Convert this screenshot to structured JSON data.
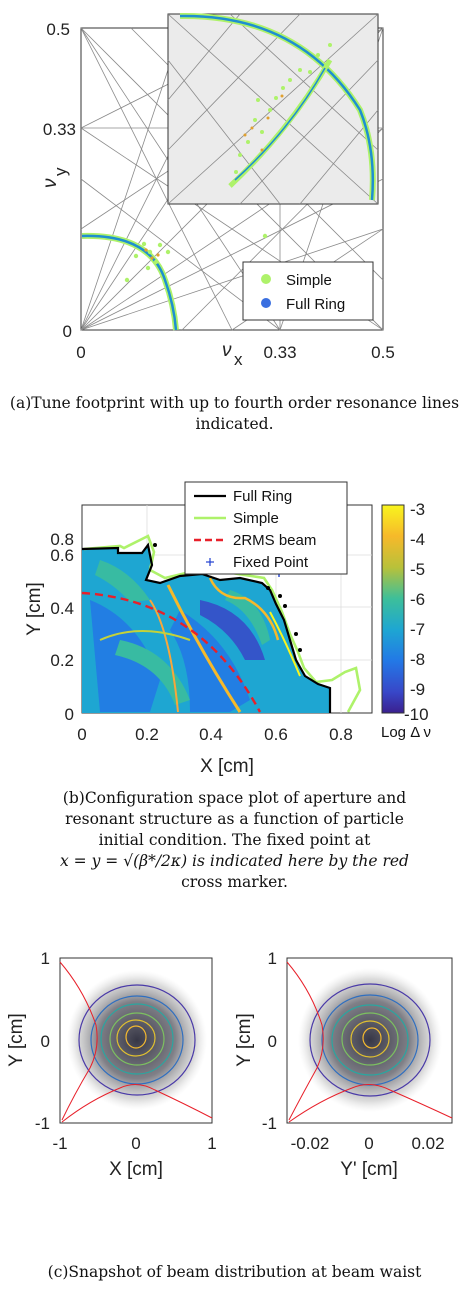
{
  "figure_a": {
    "caption": "(a)Tune footprint with up to fourth order resonance lines indicated.",
    "xlabel_main": "ν",
    "xlabel_sub": "x",
    "ylabel_main": "ν",
    "ylabel_sub": "y",
    "xticks": [
      "0",
      "0.33",
      "0.5"
    ],
    "yticks": [
      "0.5",
      "0.33",
      "0"
    ],
    "legend": [
      {
        "label": "Simple",
        "color": "#aef26a"
      },
      {
        "label": "Full Ring",
        "color": "#3a6fe0"
      }
    ]
  },
  "figure_b": {
    "caption_lines": [
      "(b)Configuration space plot of aperture and",
      "resonant structure as a function of particle",
      "initial condition. The fixed point at",
      "x = y = √(β*/2κ) is indicated here by the red",
      "cross marker."
    ],
    "xlabel": "X [cm]",
    "ylabel": "Y [cm]",
    "xticks": [
      "0",
      "0.2",
      "0.4",
      "0.6",
      "0.8"
    ],
    "yticks": [
      "0.8",
      "0.6",
      "0.4",
      "0.2",
      "0"
    ],
    "colorbar_ticks": [
      "-3",
      "-4",
      "-5",
      "-6",
      "-7",
      "-8",
      "-9",
      "-10"
    ],
    "colorbar_label": "Log Δ ν",
    "legend": [
      {
        "label": "Full Ring",
        "color": "#000000"
      },
      {
        "label": "Simple",
        "color": "#aef26a"
      },
      {
        "label": "2RMS beam",
        "color": "#e8202a"
      },
      {
        "label": "Fixed Point",
        "color": "#2040d0"
      }
    ]
  },
  "figure_c": {
    "caption": "(c)Snapshot of beam distribution at beam waist",
    "left": {
      "xlabel": "X [cm]",
      "ylabel": "Y [cm]",
      "xticks": [
        "-1",
        "0",
        "1"
      ],
      "yticks": [
        "1",
        "0",
        "-1"
      ]
    },
    "right": {
      "xlabel": "Y' [cm]",
      "ylabel": "Y [cm]",
      "xticks": [
        "-0.02",
        "0",
        "0.02"
      ],
      "yticks": [
        "1",
        "0",
        "-1"
      ]
    }
  }
}
